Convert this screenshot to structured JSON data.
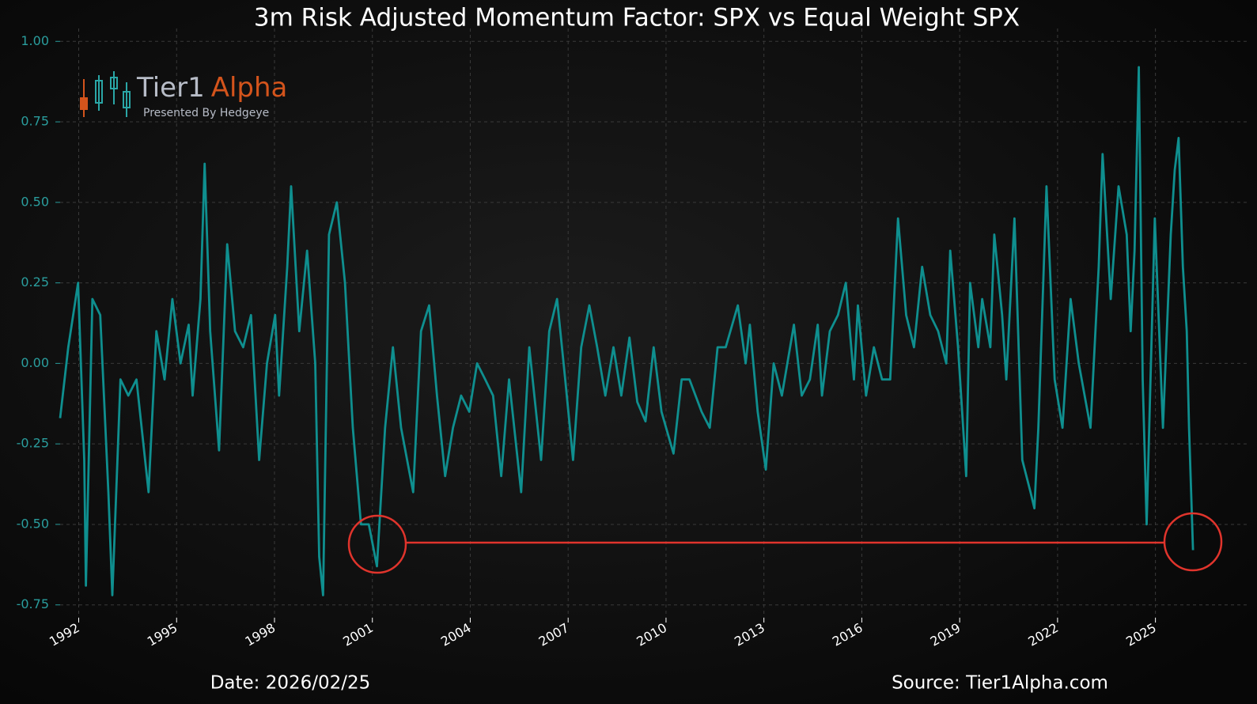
{
  "chart_data": {
    "type": "line",
    "title": "3m Risk Adjusted Momentum Factor: SPX vs Equal Weight SPX",
    "x": [
      1991.43,
      1991.68,
      1991.98,
      1992.17,
      1992.22,
      1992.42,
      1992.66,
      1992.91,
      1993.03,
      1993.28,
      1993.52,
      1993.77,
      1994.14,
      1994.38,
      1994.63,
      1994.87,
      1995.12,
      1995.37,
      1995.49,
      1995.73,
      1995.86,
      1996.03,
      1996.3,
      1996.55,
      1996.79,
      1997.04,
      1997.28,
      1997.53,
      1997.77,
      1998.02,
      1998.14,
      1998.39,
      1998.51,
      1998.76,
      1999.0,
      1999.25,
      1999.37,
      1999.49,
      1999.67,
      1999.91,
      2000.16,
      2000.4,
      2000.65,
      2000.89,
      2001.14,
      2001.39,
      2001.63,
      2001.88,
      2002.25,
      2002.49,
      2002.74,
      2002.98,
      2003.23,
      2003.47,
      2003.72,
      2003.97,
      2004.21,
      2004.46,
      2004.7,
      2004.95,
      2005.19,
      2005.56,
      2005.81,
      2006.17,
      2006.42,
      2006.66,
      2006.91,
      2007.15,
      2007.4,
      2007.65,
      2007.89,
      2008.14,
      2008.39,
      2008.63,
      2008.88,
      2009.12,
      2009.37,
      2009.62,
      2009.86,
      2010.23,
      2010.48,
      2010.72,
      2011.09,
      2011.34,
      2011.58,
      2011.83,
      2012.2,
      2012.44,
      2012.57,
      2012.81,
      2013.06,
      2013.3,
      2013.55,
      2013.92,
      2014.16,
      2014.41,
      2014.65,
      2014.78,
      2015.02,
      2015.27,
      2015.51,
      2015.76,
      2015.88,
      2016.13,
      2016.37,
      2016.62,
      2016.87,
      2017.11,
      2017.36,
      2017.6,
      2017.85,
      2018.1,
      2018.34,
      2018.59,
      2018.71,
      2018.95,
      2019.2,
      2019.32,
      2019.57,
      2019.69,
      2019.94,
      2020.06,
      2020.3,
      2020.43,
      2020.68,
      2020.92,
      2021.17,
      2021.29,
      2021.41,
      2021.66,
      2021.91,
      2022.15,
      2022.4,
      2022.65,
      2023.01,
      2023.26,
      2023.38,
      2023.63,
      2023.87,
      2024.12,
      2024.24,
      2024.36,
      2024.49,
      2024.61,
      2024.73,
      2024.98,
      2025.23,
      2025.47,
      2025.59,
      2025.71,
      2025.84,
      2025.96,
      2026.03,
      2026.11,
      2026.15
    ],
    "series": [
      {
        "color": "#0f8f8f",
        "values": [
          -0.17,
          0.05,
          0.25,
          -0.3,
          -0.69,
          0.2,
          0.15,
          -0.4,
          -0.72,
          -0.05,
          -0.1,
          -0.05,
          -0.4,
          0.1,
          -0.05,
          0.2,
          0.0,
          0.12,
          -0.1,
          0.2,
          0.62,
          0.1,
          -0.27,
          0.37,
          0.1,
          0.05,
          0.15,
          -0.3,
          0.0,
          0.15,
          -0.1,
          0.3,
          0.55,
          0.1,
          0.35,
          0.0,
          -0.6,
          -0.72,
          0.4,
          0.5,
          0.25,
          -0.2,
          -0.5,
          -0.5,
          -0.63,
          -0.2,
          0.05,
          -0.2,
          -0.4,
          0.1,
          0.18,
          -0.1,
          -0.35,
          -0.2,
          -0.1,
          -0.15,
          0.0,
          -0.05,
          -0.1,
          -0.35,
          -0.05,
          -0.4,
          0.05,
          -0.3,
          0.1,
          0.2,
          -0.05,
          -0.3,
          0.05,
          0.18,
          0.05,
          -0.1,
          0.05,
          -0.1,
          0.08,
          -0.12,
          -0.18,
          0.05,
          -0.15,
          -0.28,
          -0.05,
          -0.05,
          -0.15,
          -0.2,
          0.05,
          0.05,
          0.18,
          0.0,
          0.12,
          -0.15,
          -0.33,
          0.0,
          -0.1,
          0.12,
          -0.1,
          -0.05,
          0.12,
          -0.1,
          0.1,
          0.15,
          0.25,
          -0.05,
          0.18,
          -0.1,
          0.05,
          -0.05,
          -0.05,
          0.45,
          0.15,
          0.05,
          0.3,
          0.15,
          0.1,
          0.0,
          0.35,
          0.05,
          -0.35,
          0.25,
          0.05,
          0.2,
          0.05,
          0.4,
          0.15,
          -0.05,
          0.45,
          -0.3,
          -0.4,
          -0.45,
          -0.2,
          0.55,
          -0.05,
          -0.2,
          0.2,
          0.0,
          -0.2,
          0.3,
          0.65,
          0.2,
          0.55,
          0.4,
          0.1,
          0.35,
          0.92,
          -0.05,
          -0.5,
          0.45,
          -0.2,
          0.4,
          0.6,
          0.7,
          0.3,
          0.1,
          -0.2,
          -0.45,
          -0.58
        ]
      }
    ],
    "xlim": [
      1991.43,
      2027.87
    ],
    "xticks": [
      1992,
      1995,
      1998,
      2001,
      2004,
      2007,
      2010,
      2013,
      2016,
      2019,
      2022,
      2025
    ],
    "ylim": [
      -0.79,
      1.04
    ],
    "yticks": [
      {
        "value": 1.0,
        "label": "1.00"
      },
      0.75,
      {
        "value": 0.5,
        "label": "0.50"
      },
      0.25,
      {
        "value": 0.0,
        "label": "0.00"
      },
      -0.25,
      {
        "value": -0.5,
        "label": "-0.50"
      },
      -0.75
    ],
    "grid": true
  },
  "logo": {
    "name": "Tier1",
    "accent": "Alpha",
    "tagline": "Presented By Hedgeye"
  },
  "footer": {
    "date": "Date: 2026/02/25",
    "source": "Source: Tier1Alpha.com"
  }
}
